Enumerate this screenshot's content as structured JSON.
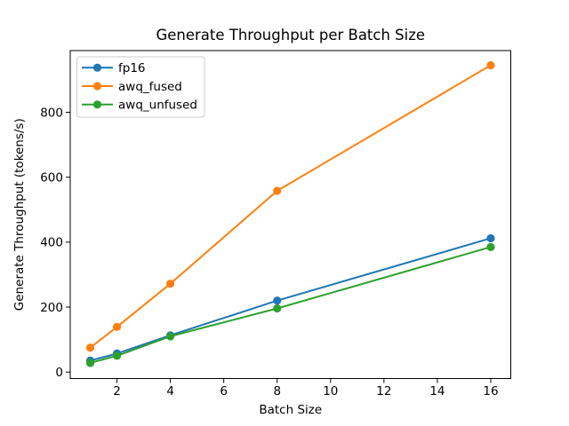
{
  "figure": {
    "background": "#ffffff"
  },
  "chart_data": {
    "type": "line",
    "title": "Generate Throughput per Batch Size",
    "xlabel": "Batch Size",
    "ylabel": "Generate Throughput (tokens/s)",
    "x": [
      1,
      2,
      4,
      8,
      16
    ],
    "series": [
      {
        "name": "fp16",
        "color": "#1f77b4",
        "values": [
          35,
          57,
          113,
          220,
          412
        ]
      },
      {
        "name": "awq_fused",
        "color": "#ff7f0e",
        "values": [
          75,
          139,
          272,
          558,
          945
        ]
      },
      {
        "name": "awq_unfused",
        "color": "#2ca02c",
        "values": [
          28,
          50,
          110,
          196,
          385
        ]
      }
    ],
    "xticks": [
      2,
      4,
      6,
      8,
      10,
      12,
      14,
      16
    ],
    "yticks": [
      0,
      200,
      400,
      600,
      800
    ],
    "xlim": [
      0.25,
      16.75
    ],
    "ylim": [
      -20,
      990
    ],
    "grid": false,
    "marker": "o",
    "line_style": "solid",
    "legend": {
      "position": "upper-left",
      "entries": [
        "fp16",
        "awq_fused",
        "awq_unfused"
      ]
    },
    "axis_color": "#000000",
    "legend_border_color": "#cccccc"
  }
}
